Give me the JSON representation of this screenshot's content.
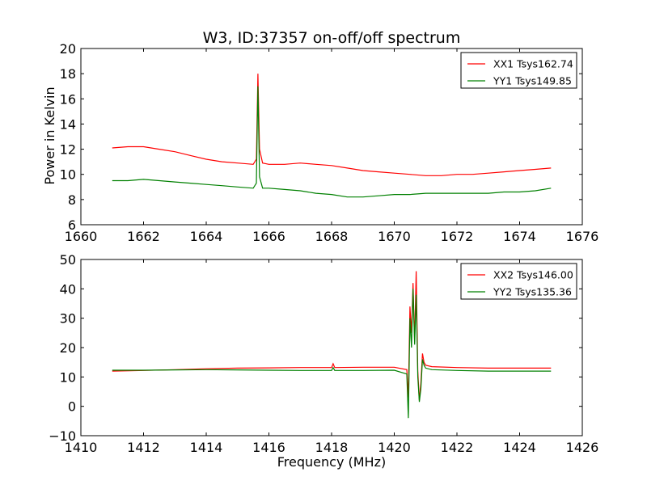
{
  "title": "W3, ID:37357 on-off/off spectrum",
  "xlabel_bottom": "Frequency (MHz)",
  "ylabel_top": "Power in Kelvin",
  "colors": {
    "series1": "#ff0000",
    "series2": "#008000"
  },
  "chart_data": [
    {
      "type": "line",
      "xlim": [
        1660,
        1676
      ],
      "ylim": [
        6,
        20
      ],
      "xticks": [
        "1660",
        "1662",
        "1664",
        "1666",
        "1668",
        "1670",
        "1672",
        "1674",
        "1676"
      ],
      "yticks": [
        "6",
        "8",
        "10",
        "12",
        "14",
        "16",
        "18",
        "20"
      ],
      "grid": false,
      "legend_position": "top-right",
      "series": [
        {
          "name": "XX1 Tsys162.74",
          "color": "#ff0000",
          "x": [
            1661.0,
            1661.5,
            1662.0,
            1662.5,
            1663.0,
            1663.5,
            1664.0,
            1664.5,
            1665.0,
            1665.5,
            1665.6,
            1665.65,
            1665.7,
            1665.8,
            1666.0,
            1666.5,
            1667.0,
            1667.5,
            1668.0,
            1668.5,
            1669.0,
            1669.5,
            1670.0,
            1670.5,
            1671.0,
            1671.5,
            1672.0,
            1672.5,
            1673.0,
            1673.5,
            1674.0,
            1674.5,
            1675.0
          ],
          "y": [
            12.1,
            12.2,
            12.2,
            12.0,
            11.8,
            11.5,
            11.2,
            11.0,
            10.9,
            10.8,
            11.2,
            18.0,
            12.0,
            10.9,
            10.8,
            10.8,
            10.9,
            10.8,
            10.7,
            10.5,
            10.3,
            10.2,
            10.1,
            10.0,
            9.9,
            9.9,
            10.0,
            10.0,
            10.1,
            10.2,
            10.3,
            10.4,
            10.5
          ]
        },
        {
          "name": "YY1 Tsys149.85",
          "color": "#008000",
          "x": [
            1661.0,
            1661.5,
            1662.0,
            1662.5,
            1663.0,
            1663.5,
            1664.0,
            1664.5,
            1665.0,
            1665.5,
            1665.6,
            1665.65,
            1665.7,
            1665.8,
            1666.0,
            1666.5,
            1667.0,
            1667.5,
            1668.0,
            1668.5,
            1669.0,
            1669.5,
            1670.0,
            1670.5,
            1671.0,
            1671.5,
            1672.0,
            1672.5,
            1673.0,
            1673.5,
            1674.0,
            1674.5,
            1675.0
          ],
          "y": [
            9.5,
            9.5,
            9.6,
            9.5,
            9.4,
            9.3,
            9.2,
            9.1,
            9.0,
            8.9,
            9.3,
            17.0,
            9.8,
            8.9,
            8.9,
            8.8,
            8.7,
            8.5,
            8.4,
            8.2,
            8.2,
            8.3,
            8.4,
            8.4,
            8.5,
            8.5,
            8.5,
            8.5,
            8.5,
            8.6,
            8.6,
            8.7,
            8.9
          ]
        }
      ]
    },
    {
      "type": "line",
      "xlim": [
        1410,
        1426
      ],
      "ylim": [
        -10,
        50
      ],
      "xticks": [
        "1410",
        "1412",
        "1414",
        "1416",
        "1418",
        "1420",
        "1422",
        "1424",
        "1426"
      ],
      "yticks": [
        "−10",
        "0",
        "10",
        "20",
        "30",
        "40",
        "50"
      ],
      "grid": false,
      "legend_position": "top-right",
      "series": [
        {
          "name": "XX2 Tsys146.00",
          "color": "#ff0000",
          "x": [
            1411.0,
            1412.0,
            1413.0,
            1414.0,
            1415.0,
            1416.0,
            1417.0,
            1418.0,
            1418.05,
            1418.1,
            1419.0,
            1420.0,
            1420.4,
            1420.45,
            1420.5,
            1420.55,
            1420.6,
            1420.65,
            1420.7,
            1420.75,
            1420.8,
            1420.85,
            1420.9,
            1420.95,
            1421.0,
            1421.2,
            1422.0,
            1423.0,
            1424.0,
            1425.0
          ],
          "y": [
            12.0,
            12.2,
            12.5,
            12.8,
            13.0,
            13.1,
            13.2,
            13.2,
            14.5,
            13.2,
            13.3,
            13.3,
            12.5,
            3.0,
            34.0,
            25.0,
            42.0,
            22.0,
            46.0,
            12.0,
            2.0,
            8.0,
            18.0,
            15.0,
            14.0,
            13.5,
            13.2,
            13.0,
            13.0,
            13.0
          ]
        },
        {
          "name": "YY2 Tsys135.36",
          "color": "#008000",
          "x": [
            1411.0,
            1412.0,
            1413.0,
            1414.0,
            1415.0,
            1416.0,
            1417.0,
            1418.0,
            1418.05,
            1418.1,
            1419.0,
            1420.0,
            1420.4,
            1420.45,
            1420.5,
            1420.55,
            1420.6,
            1420.65,
            1420.7,
            1420.75,
            1420.8,
            1420.85,
            1420.9,
            1420.95,
            1421.0,
            1421.2,
            1422.0,
            1423.0,
            1424.0,
            1425.0
          ],
          "y": [
            12.3,
            12.3,
            12.4,
            12.5,
            12.4,
            12.3,
            12.2,
            12.2,
            13.2,
            12.2,
            12.2,
            12.3,
            11.0,
            -4.0,
            30.0,
            20.0,
            40.0,
            21.0,
            38.0,
            10.0,
            1.5,
            6.0,
            16.0,
            14.0,
            13.0,
            12.5,
            12.2,
            12.0,
            12.0,
            12.0
          ]
        }
      ]
    }
  ]
}
